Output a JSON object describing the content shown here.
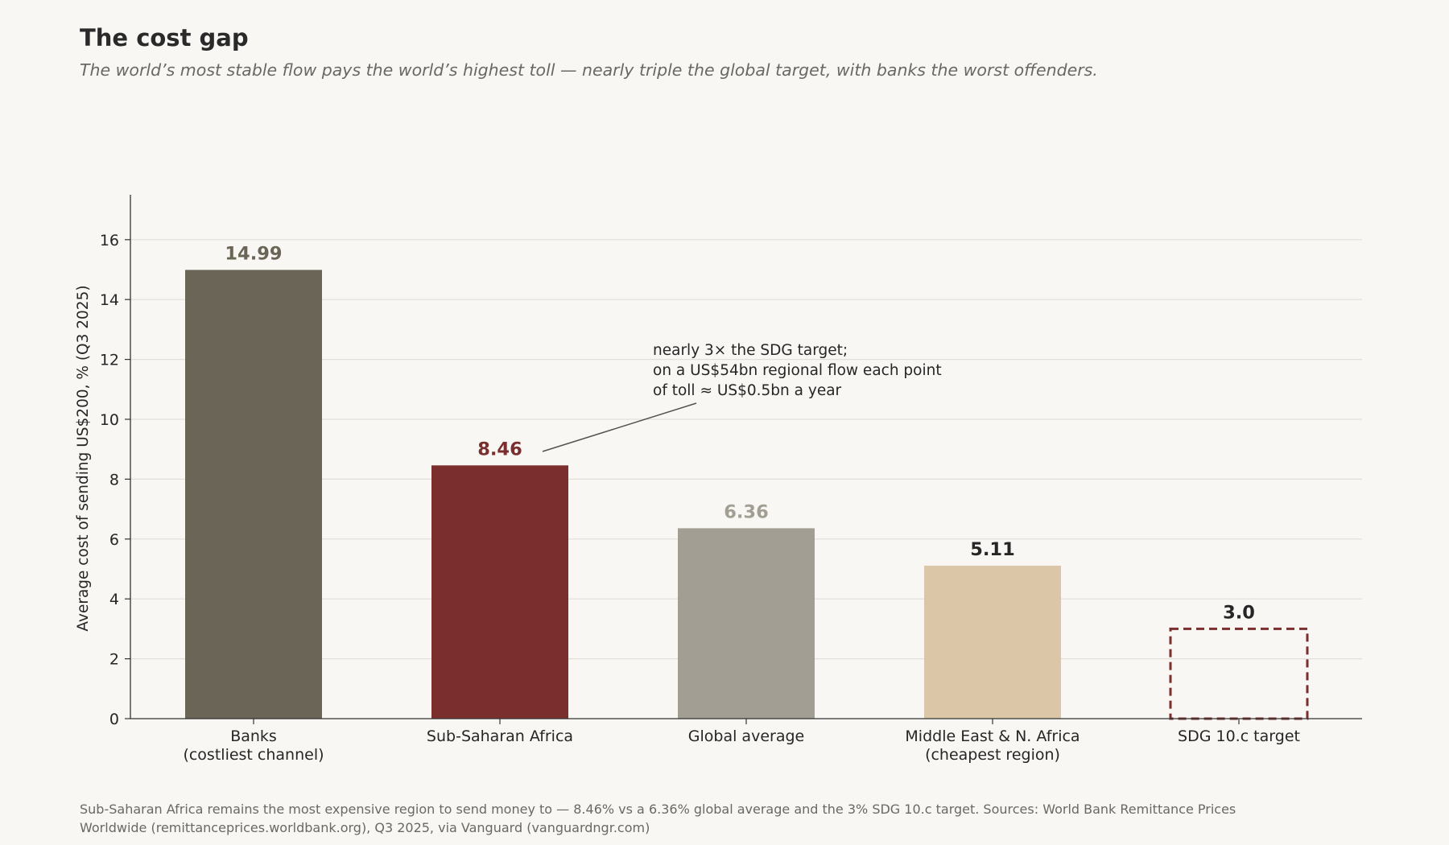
{
  "title": "The cost gap",
  "subtitle": "The world’s most stable flow pays the world’s highest toll — nearly triple the global target, with banks the worst offenders.",
  "footnote": "Sub-Saharan Africa remains the most expensive region to send money to — 8.46% vs a 6.36% global average and the 3% SDG 10.c target. Sources: World Bank Remittance Prices Worldwide (remittanceprices.worldbank.org), Q3 2025, via Vanguard (vanguardngr.com)",
  "chart_data": {
    "type": "bar",
    "title": "The cost gap",
    "ylabel": "Average cost of sending US$200, % (Q3 2025)",
    "xlabel": "",
    "ylim": [
      0,
      17.5
    ],
    "yticks": [
      0,
      2,
      4,
      6,
      8,
      10,
      12,
      14,
      16
    ],
    "grid": "horizontal",
    "categories": [
      [
        "Banks",
        "(costliest channel)"
      ],
      [
        "Sub-Saharan Africa"
      ],
      [
        "Global average"
      ],
      [
        "Middle East & N. Africa",
        "(cheapest region)"
      ],
      [
        "SDG 10.c target"
      ]
    ],
    "values": [
      14.99,
      8.46,
      6.36,
      5.11,
      3.0
    ],
    "value_labels": [
      "14.99",
      "8.46",
      "6.36",
      "5.11",
      "3.0"
    ],
    "bar_colors": [
      "#6b6557",
      "#7a2e2e",
      "#a29e93",
      "#dbc7a7",
      "none"
    ],
    "label_colors": [
      "#6b6557",
      "#7a2e2e",
      "#a29e93",
      "#262626",
      "#262626"
    ],
    "target_bar": {
      "index": 4,
      "style": "dashed-outline",
      "color": "#7a2e2e"
    },
    "annotation": {
      "lines": [
        "nearly 3× the SDG target;",
        "on a US$54bn regional flow each point",
        "of toll ≈ US$0.5bn a year"
      ],
      "points_to": "Sub-Saharan Africa"
    }
  }
}
